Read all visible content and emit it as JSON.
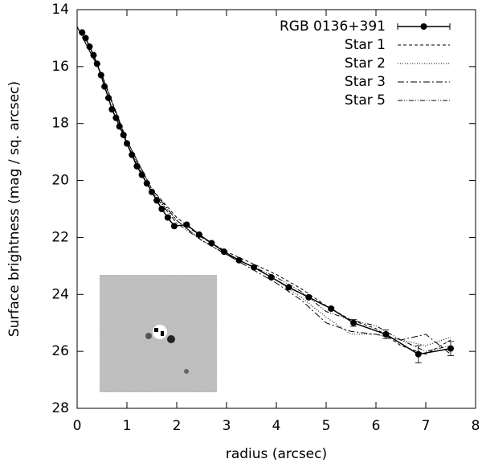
{
  "chart_data": {
    "type": "line",
    "xlabel": "radius (arcsec)",
    "ylabel": "Surface brightness (mag / sq. arcsec)",
    "xlim": [
      0,
      8
    ],
    "xticks": [
      0,
      1,
      2,
      3,
      4,
      5,
      6,
      7,
      8
    ],
    "ylim": [
      14,
      28
    ],
    "yticks": [
      14,
      16,
      18,
      20,
      22,
      24,
      26,
      28
    ],
    "y_inverted": true,
    "legend": "upper right",
    "series": [
      {
        "name": "RGB 0136+391",
        "color": "#000000",
        "dash": "none",
        "markers": true,
        "x": [
          0.1,
          0.17,
          0.25,
          0.33,
          0.4,
          0.48,
          0.55,
          0.63,
          0.7,
          0.78,
          0.85,
          0.93,
          1.0,
          1.1,
          1.2,
          1.3,
          1.4,
          1.5,
          1.6,
          1.7,
          1.82,
          1.95,
          2.2,
          2.45,
          2.7,
          2.95,
          3.25,
          3.55,
          3.9,
          4.25,
          4.65,
          5.1,
          5.55,
          6.2,
          6.85,
          7.5
        ],
        "values": [
          14.8,
          15.0,
          15.3,
          15.6,
          15.9,
          16.3,
          16.7,
          17.1,
          17.5,
          17.8,
          18.1,
          18.4,
          18.7,
          19.1,
          19.5,
          19.8,
          20.1,
          20.4,
          20.7,
          21.0,
          21.3,
          21.6,
          21.55,
          21.9,
          22.2,
          22.5,
          22.8,
          23.05,
          23.4,
          23.75,
          24.1,
          24.5,
          25.0,
          25.4,
          26.1,
          25.9
        ],
        "errors": [
          0,
          0,
          0,
          0,
          0,
          0,
          0,
          0,
          0,
          0,
          0,
          0,
          0,
          0,
          0,
          0,
          0,
          0,
          0,
          0,
          0,
          0,
          0,
          0,
          0,
          0,
          0,
          0,
          0,
          0,
          0,
          0.05,
          0.12,
          0.15,
          0.3,
          0.25
        ]
      },
      {
        "name": "Star 1",
        "color": "#000000",
        "dash": "4,3",
        "markers": false,
        "x": [
          0,
          0.5,
          1,
          1.5,
          2,
          2.5,
          3,
          3.5,
          4,
          4.5,
          5,
          5.5,
          6,
          6.5,
          7,
          7.5
        ],
        "values": [
          14.6,
          16.3,
          18.6,
          20.3,
          21.3,
          22.0,
          22.5,
          22.9,
          23.3,
          23.8,
          24.4,
          24.9,
          25.2,
          25.8,
          26.1,
          25.6
        ]
      },
      {
        "name": "Star 2",
        "color": "#000000",
        "dash": "1,2",
        "markers": false,
        "x": [
          0,
          0.5,
          1,
          1.5,
          2,
          2.5,
          3,
          3.5,
          4,
          4.5,
          5,
          5.5,
          6,
          6.5,
          7,
          7.5
        ],
        "values": [
          14.6,
          16.3,
          18.7,
          20.4,
          21.4,
          22.1,
          22.6,
          23.0,
          23.5,
          24.1,
          24.8,
          25.4,
          25.4,
          25.6,
          25.8,
          25.5
        ]
      },
      {
        "name": "Star 3",
        "color": "#000000",
        "dash": "8,3,2,3",
        "markers": false,
        "x": [
          0,
          0.5,
          1,
          1.5,
          2,
          2.5,
          3,
          3.5,
          4,
          4.5,
          5,
          5.5,
          6,
          6.5,
          7,
          7.5
        ],
        "values": [
          14.6,
          16.3,
          18.6,
          20.3,
          21.4,
          22.1,
          22.6,
          23.1,
          23.6,
          24.2,
          25.0,
          25.3,
          25.4,
          25.6,
          25.4,
          26.1
        ]
      },
      {
        "name": "Star 5",
        "color": "#000000",
        "dash": "6,2,1,2,1,2",
        "markers": false,
        "x": [
          0,
          0.5,
          1,
          1.5,
          2,
          2.5,
          3,
          3.5,
          4,
          4.5,
          5,
          5.5,
          6,
          6.5,
          7,
          7.5
        ],
        "values": [
          14.6,
          16.3,
          18.7,
          20.4,
          21.5,
          22.1,
          22.6,
          23.0,
          23.4,
          23.9,
          24.6,
          24.9,
          25.1,
          25.6,
          26.0,
          25.8
        ]
      }
    ]
  }
}
